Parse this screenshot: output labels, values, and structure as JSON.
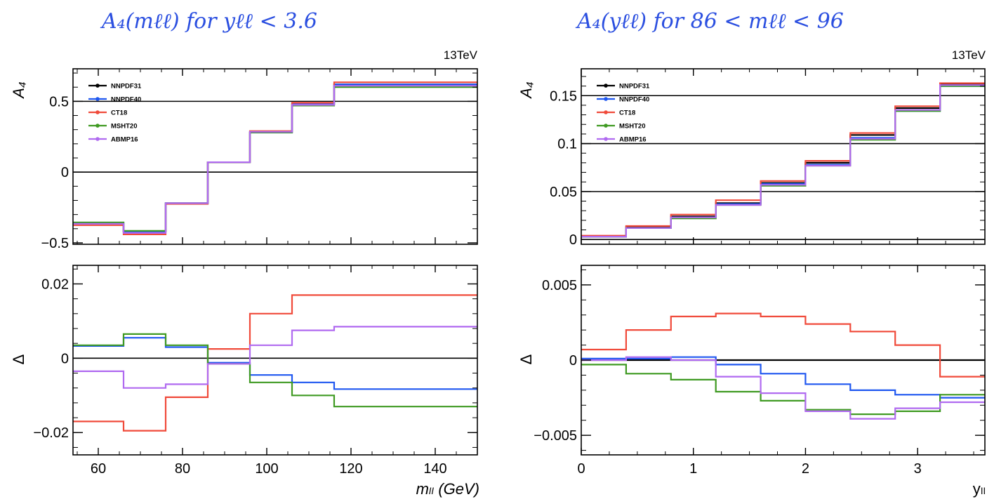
{
  "colors": {
    "NNPDF31": "#000000",
    "NNPDF40": "#1f57f0",
    "CT18": "#f04a3a",
    "MSHT20": "#3f9a22",
    "ABMP16": "#b06af0",
    "title": "#2b4fe0"
  },
  "left": {
    "title": "A₄(mℓℓ) for yℓℓ < 3.6",
    "energy": "13TeV",
    "top": {
      "ylabel": "A₄",
      "ylim": [
        -0.51,
        0.73
      ],
      "yticks": [
        -0.5,
        0,
        0.5
      ],
      "yticklabels": [
        "−0.5",
        "0",
        "0.5"
      ],
      "hlines": [
        0,
        0.5
      ]
    },
    "bottom": {
      "ylabel": "Δ",
      "ylim": [
        -0.026,
        0.025
      ],
      "yticks": [
        -0.02,
        0,
        0.02
      ],
      "yticklabels": [
        "−0.02",
        "0",
        "0.02"
      ],
      "hlines": [
        0
      ]
    },
    "xlim": [
      54,
      150
    ],
    "xticks": [
      60,
      80,
      100,
      120,
      140
    ],
    "xticklabels": [
      "60",
      "80",
      "100",
      "120",
      "140"
    ],
    "xlabel": "mₗₗ (GeV)"
  },
  "right": {
    "title": "A₄(yℓℓ) for 86 < mℓℓ < 96",
    "energy": "13TeV",
    "top": {
      "ylabel": "A₄",
      "ylim": [
        -0.005,
        0.178
      ],
      "yticks": [
        0,
        0.05,
        0.1,
        0.15
      ],
      "yticklabels": [
        "0",
        "0.05",
        "0.1",
        "0.15"
      ],
      "hlines": [
        0,
        0.05,
        0.1,
        0.15
      ]
    },
    "bottom": {
      "ylabel": "Δ",
      "ylim": [
        -0.0063,
        0.0063
      ],
      "yticks": [
        -0.005,
        0,
        0.005
      ],
      "yticklabels": [
        "−0.005",
        "0",
        "0.005"
      ],
      "hlines": [
        0
      ]
    },
    "xlim": [
      0,
      3.6
    ],
    "xticks": [
      0,
      1,
      2,
      3
    ],
    "xticklabels": [
      "0",
      "1",
      "2",
      "3"
    ],
    "xlabel": "yₗₗ"
  },
  "chart_data": [
    {
      "type": "line",
      "panel": "left-top",
      "step": true,
      "x_edges": [
        54,
        66,
        76,
        86,
        96,
        106,
        116,
        150
      ],
      "xlim": [
        54,
        150
      ],
      "ylim": [
        -0.51,
        0.73
      ],
      "ylabel": "A₄",
      "series": [
        {
          "name": "NNPDF31",
          "values": [
            -0.36,
            -0.42,
            -0.22,
            0.07,
            0.28,
            0.48,
            0.62
          ]
        },
        {
          "name": "NNPDF40",
          "values": [
            -0.36,
            -0.42,
            -0.22,
            0.07,
            0.28,
            0.48,
            0.62
          ]
        },
        {
          "name": "CT18",
          "values": [
            -0.375,
            -0.44,
            -0.225,
            0.07,
            0.29,
            0.49,
            0.635
          ]
        },
        {
          "name": "MSHT20",
          "values": [
            -0.355,
            -0.415,
            -0.22,
            0.07,
            0.28,
            0.47,
            0.6
          ]
        },
        {
          "name": "ABMP16",
          "values": [
            -0.365,
            -0.43,
            -0.22,
            0.07,
            0.285,
            0.475,
            0.61
          ]
        }
      ]
    },
    {
      "type": "line",
      "panel": "left-bottom",
      "step": true,
      "x_edges": [
        54,
        66,
        76,
        86,
        96,
        106,
        116,
        150
      ],
      "xlim": [
        54,
        150
      ],
      "ylim": [
        -0.026,
        0.025
      ],
      "ylabel": "Δ",
      "xlabel": "mₗₗ (GeV)",
      "series": [
        {
          "name": "NNPDF40",
          "values": [
            0.0033,
            0.0055,
            0.003,
            -0.0012,
            -0.0045,
            -0.0065,
            -0.0083
          ]
        },
        {
          "name": "CT18",
          "values": [
            -0.017,
            -0.0195,
            -0.0105,
            0.0025,
            0.012,
            0.017,
            0.017
          ]
        },
        {
          "name": "MSHT20",
          "values": [
            0.0035,
            0.0065,
            0.0035,
            -0.0015,
            -0.0065,
            -0.01,
            -0.013
          ]
        },
        {
          "name": "ABMP16",
          "values": [
            -0.0035,
            -0.008,
            -0.007,
            -0.0015,
            0.0035,
            0.0075,
            0.0085
          ]
        }
      ]
    },
    {
      "type": "line",
      "panel": "right-top",
      "step": true,
      "x_edges": [
        0,
        0.4,
        0.8,
        1.2,
        1.6,
        2.0,
        2.4,
        2.8,
        3.2,
        3.6
      ],
      "xlim": [
        0,
        3.6
      ],
      "ylim": [
        -0.005,
        0.178
      ],
      "ylabel": "A₄",
      "series": [
        {
          "name": "NNPDF31",
          "values": [
            0.003,
            0.013,
            0.024,
            0.038,
            0.059,
            0.08,
            0.109,
            0.137,
            0.162
          ]
        },
        {
          "name": "NNPDF40",
          "values": [
            0.003,
            0.012,
            0.023,
            0.037,
            0.058,
            0.078,
            0.106,
            0.134,
            0.16
          ]
        },
        {
          "name": "CT18",
          "values": [
            0.004,
            0.014,
            0.026,
            0.041,
            0.061,
            0.082,
            0.111,
            0.139,
            0.163
          ]
        },
        {
          "name": "MSHT20",
          "values": [
            0.003,
            0.012,
            0.022,
            0.036,
            0.056,
            0.077,
            0.104,
            0.134,
            0.16
          ]
        },
        {
          "name": "ABMP16",
          "values": [
            0.003,
            0.012,
            0.023,
            0.036,
            0.057,
            0.077,
            0.105,
            0.135,
            0.161
          ]
        }
      ]
    },
    {
      "type": "line",
      "panel": "right-bottom",
      "step": true,
      "x_edges": [
        0,
        0.4,
        0.8,
        1.2,
        1.6,
        2.0,
        2.4,
        2.8,
        3.2,
        3.6
      ],
      "xlim": [
        0,
        3.6
      ],
      "ylim": [
        -0.0063,
        0.0063
      ],
      "ylabel": "Δ",
      "xlabel": "yₗₗ",
      "series": [
        {
          "name": "NNPDF31",
          "values": [
            0.0,
            0.0,
            0.0,
            0.0,
            0.0,
            0.0,
            0.0,
            0.0,
            0.0
          ]
        },
        {
          "name": "NNPDF40",
          "values": [
            0.0001,
            0.0001,
            0.0002,
            -0.0003,
            -0.0009,
            -0.0016,
            -0.002,
            -0.0023,
            -0.0025
          ]
        },
        {
          "name": "CT18",
          "values": [
            0.0007,
            0.002,
            0.0029,
            0.0031,
            0.0029,
            0.0024,
            0.0019,
            0.001,
            -0.0011
          ]
        },
        {
          "name": "MSHT20",
          "values": [
            -0.0003,
            -0.0009,
            -0.0013,
            -0.0021,
            -0.0027,
            -0.0033,
            -0.0036,
            -0.0034,
            -0.0023
          ]
        },
        {
          "name": "ABMP16",
          "values": [
            0.0,
            0.0002,
            0.0,
            -0.0011,
            -0.0022,
            -0.0034,
            -0.0039,
            -0.0032,
            -0.0028
          ]
        }
      ]
    }
  ]
}
